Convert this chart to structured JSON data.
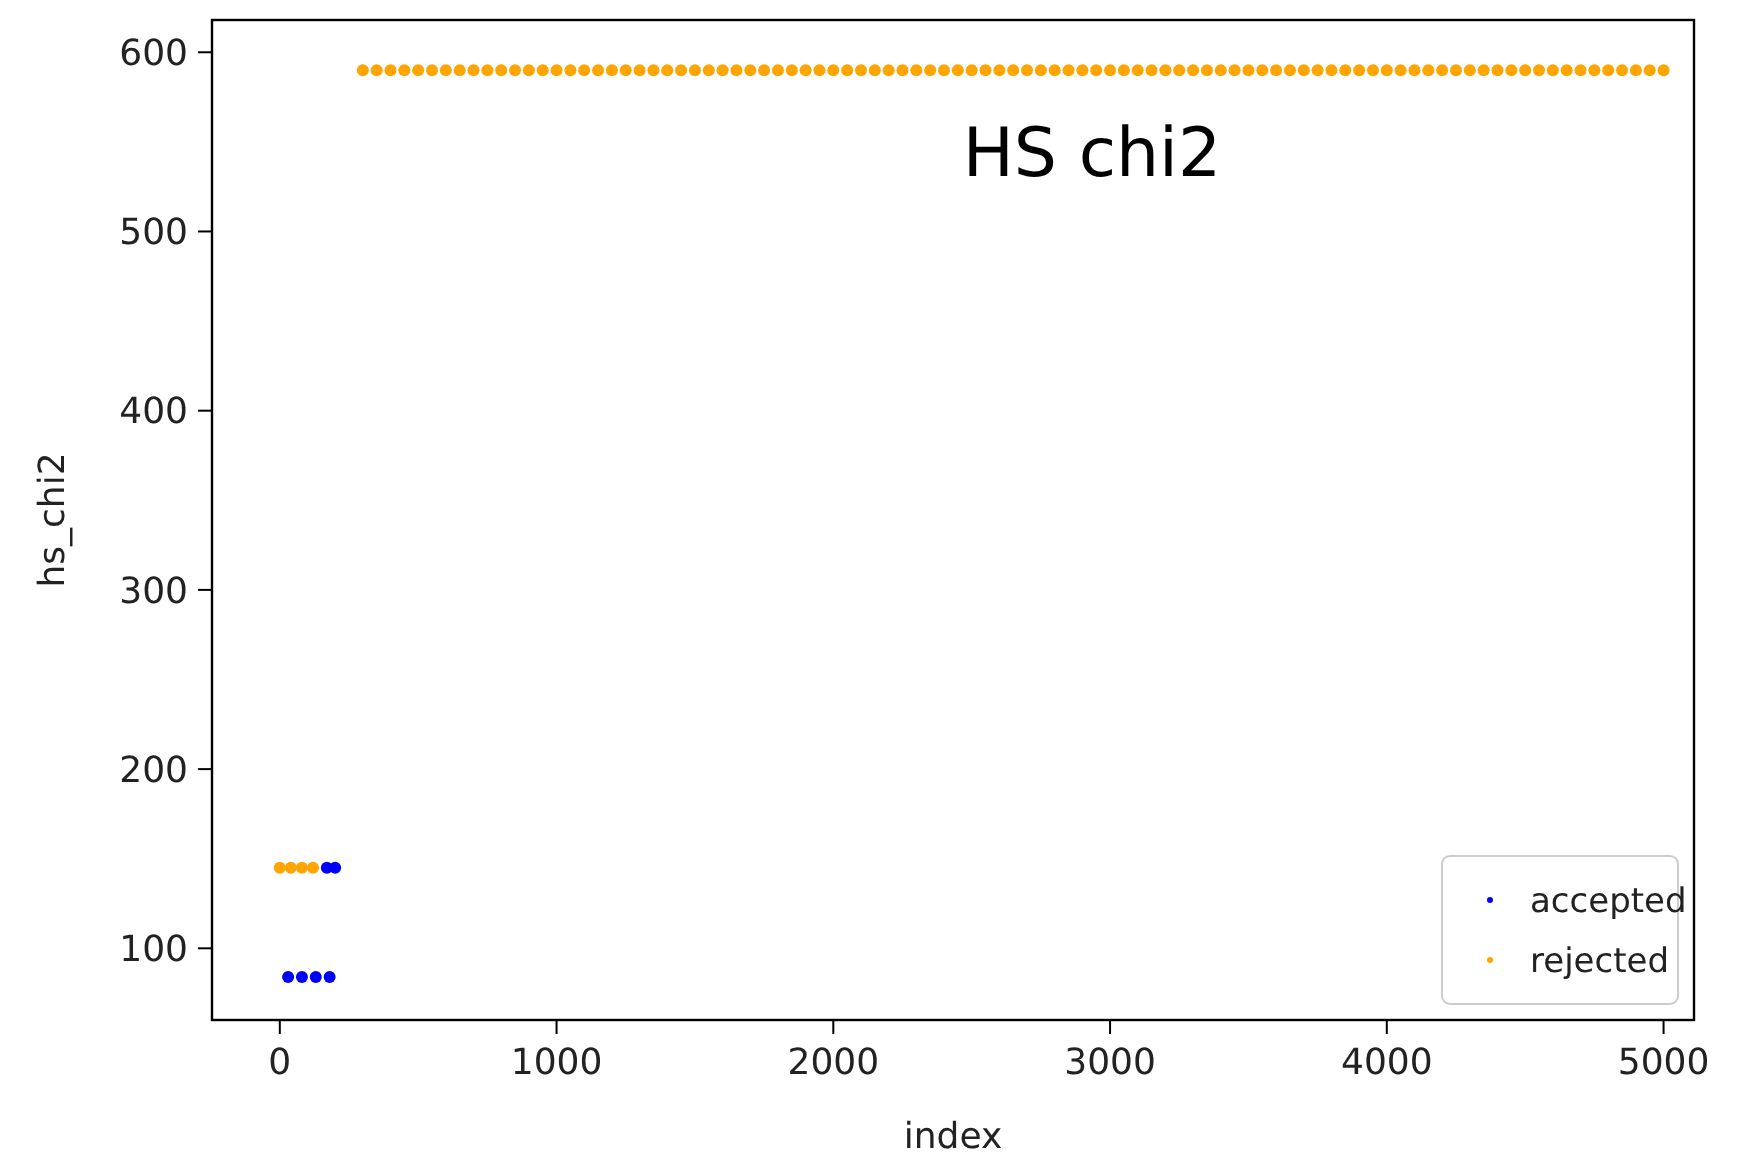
{
  "chart_data": {
    "type": "scatter",
    "xlabel": "index",
    "ylabel": "hs_chi2",
    "annotations": [
      "HS chi2"
    ],
    "xlim": [
      -245,
      5110
    ],
    "ylim": [
      60,
      618
    ],
    "xticks": [
      0,
      1000,
      2000,
      3000,
      4000,
      5000
    ],
    "yticks": [
      100,
      200,
      300,
      400,
      500,
      600
    ],
    "grid": false,
    "legend": "bottom right",
    "marker": "circle",
    "series": [
      {
        "name": "accepted",
        "color": "#0000ff",
        "x": [
          170,
          200,
          30,
          80,
          130,
          180
        ],
        "values": [
          145,
          145,
          84,
          84,
          84,
          84
        ]
      },
      {
        "name": "rejected",
        "color": "#ffa500",
        "x": [
          0,
          40,
          80,
          120,
          300,
          350,
          400,
          450,
          500,
          550,
          600,
          650,
          700,
          750,
          800,
          850,
          900,
          950,
          1000,
          1050,
          1100,
          1150,
          1200,
          1250,
          1300,
          1350,
          1400,
          1450,
          1500,
          1550,
          1600,
          1650,
          1700,
          1750,
          1800,
          1850,
          1900,
          1950,
          2000,
          2050,
          2100,
          2150,
          2200,
          2250,
          2300,
          2350,
          2400,
          2450,
          2500,
          2550,
          2600,
          2650,
          2700,
          2750,
          2800,
          2850,
          2900,
          2950,
          3000,
          3050,
          3100,
          3150,
          3200,
          3250,
          3300,
          3350,
          3400,
          3450,
          3500,
          3550,
          3600,
          3650,
          3700,
          3750,
          3800,
          3850,
          3900,
          3950,
          4000,
          4050,
          4100,
          4150,
          4200,
          4250,
          4300,
          4350,
          4400,
          4450,
          4500,
          4550,
          4600,
          4650,
          4700,
          4750,
          4800,
          4850,
          4900,
          4950,
          5000
        ],
        "values": [
          145,
          145,
          145,
          145,
          590,
          590,
          590,
          590,
          590,
          590,
          590,
          590,
          590,
          590,
          590,
          590,
          590,
          590,
          590,
          590,
          590,
          590,
          590,
          590,
          590,
          590,
          590,
          590,
          590,
          590,
          590,
          590,
          590,
          590,
          590,
          590,
          590,
          590,
          590,
          590,
          590,
          590,
          590,
          590,
          590,
          590,
          590,
          590,
          590,
          590,
          590,
          590,
          590,
          590,
          590,
          590,
          590,
          590,
          590,
          590,
          590,
          590,
          590,
          590,
          590,
          590,
          590,
          590,
          590,
          590,
          590,
          590,
          590,
          590,
          590,
          590,
          590,
          590,
          590,
          590,
          590,
          590,
          590,
          590,
          590,
          590,
          590,
          590,
          590,
          590,
          590,
          590,
          590,
          590,
          590,
          590,
          590,
          590,
          590
        ]
      }
    ]
  }
}
